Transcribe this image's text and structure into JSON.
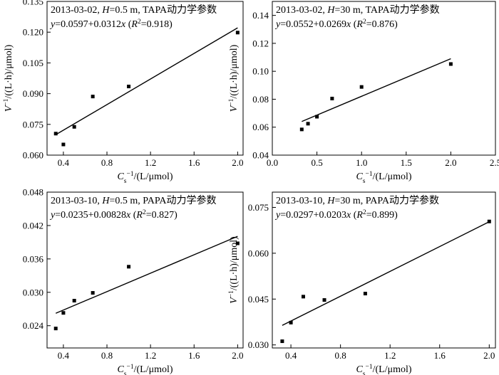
{
  "chart_data": [
    {
      "type": "scatter",
      "title": "2013-03-02, H=0.5 m, TAPA动力学参数",
      "equation": "y=0.0597+0.0312x (R2=0.918)",
      "xlabel": "Cs−1/(L/μmol)",
      "ylabel": "V−1/((L·h)/μmol)",
      "xlim": [
        0.25,
        2.05
      ],
      "ylim": [
        0.06,
        0.135
      ],
      "xticks": [
        0.4,
        0.8,
        1.2,
        1.6,
        2.0
      ],
      "yticks": [
        0.06,
        0.075,
        0.09,
        0.105,
        0.12,
        0.135
      ],
      "x_tick_labels": [
        "0.4",
        "0.8",
        "1.2",
        "1.6",
        "2.0"
      ],
      "y_tick_labels": [
        "0.060",
        "0.075",
        "0.090",
        "0.105",
        "0.120",
        "0.135"
      ],
      "points": [
        [
          0.33,
          0.0705
        ],
        [
          0.4,
          0.0652
        ],
        [
          0.5,
          0.0738
        ],
        [
          0.67,
          0.0886
        ],
        [
          1.0,
          0.0935
        ],
        [
          2.0,
          0.1198
        ]
      ],
      "fit": {
        "intercept": 0.0597,
        "slope": 0.0312,
        "x_range": [
          0.33,
          2.0
        ]
      }
    },
    {
      "type": "scatter",
      "title": "2013-03-02, H=30 m, TAPA动力学参数",
      "equation": "y=0.0552+0.0269x (R2=0.876)",
      "xlabel": "Cs−1/(L/μmol)",
      "ylabel": "V−1/((L·h)/μmol)",
      "xlim": [
        0.0,
        2.5
      ],
      "ylim": [
        0.04,
        0.15
      ],
      "xticks": [
        0.0,
        0.5,
        1.0,
        1.5,
        2.0,
        2.5
      ],
      "yticks": [
        0.04,
        0.06,
        0.08,
        0.1,
        0.12,
        0.14
      ],
      "x_tick_labels": [
        "0.0",
        "0.5",
        "1.0",
        "1.5",
        "2.0",
        "2.5"
      ],
      "y_tick_labels": [
        "0.04",
        "0.06",
        "0.08",
        "0.10",
        "0.12",
        "0.14"
      ],
      "points": [
        [
          0.33,
          0.0584
        ],
        [
          0.4,
          0.0625
        ],
        [
          0.5,
          0.0675
        ],
        [
          0.67,
          0.0805
        ],
        [
          1.0,
          0.0888
        ],
        [
          2.0,
          0.1052
        ]
      ],
      "fit": {
        "intercept": 0.0552,
        "slope": 0.0269,
        "x_range": [
          0.33,
          2.0
        ]
      }
    },
    {
      "type": "scatter",
      "title": "2013-03-10, H=0.5 m, PAPA动力学参数",
      "equation": "y=0.0235+0.00828x (R2=0.827)",
      "xlabel": "Cs−1/(L/μmol)",
      "ylabel": "",
      "xlim": [
        0.25,
        2.05
      ],
      "ylim": [
        0.02,
        0.048
      ],
      "xticks": [
        0.4,
        0.8,
        1.2,
        1.6,
        2.0
      ],
      "yticks": [
        0.024,
        0.03,
        0.036,
        0.042,
        0.048
      ],
      "x_tick_labels": [
        "0.4",
        "0.8",
        "1.2",
        "1.6",
        "2.0"
      ],
      "y_tick_labels": [
        "0.024",
        "0.030",
        "0.036",
        "0.042",
        "0.048"
      ],
      "points": [
        [
          0.33,
          0.0235
        ],
        [
          0.4,
          0.0263
        ],
        [
          0.5,
          0.0285
        ],
        [
          0.67,
          0.0299
        ],
        [
          1.0,
          0.0346
        ],
        [
          2.0,
          0.0388
        ]
      ],
      "fit": {
        "intercept": 0.0235,
        "slope": 0.00828,
        "x_range": [
          0.33,
          2.0
        ]
      }
    },
    {
      "type": "scatter",
      "title": "2013-03-10, H=30 m, PAPA动力学参数",
      "equation": "y=0.0297+0.0203x (R2=0.899)",
      "xlabel": "Cs−1/(L/μmol)",
      "ylabel": "V−1/((L·h)/μmol)",
      "xlim": [
        0.25,
        2.05
      ],
      "ylim": [
        0.029,
        0.08
      ],
      "xticks": [
        0.4,
        0.8,
        1.2,
        1.6,
        2.0
      ],
      "yticks": [
        0.03,
        0.045,
        0.06,
        0.075
      ],
      "x_tick_labels": [
        "0.4",
        "0.8",
        "1.2",
        "1.6",
        "2.0"
      ],
      "y_tick_labels": [
        "0.030",
        "0.045",
        "0.060",
        "0.075"
      ],
      "points": [
        [
          0.33,
          0.0312
        ],
        [
          0.4,
          0.0373
        ],
        [
          0.5,
          0.0458
        ],
        [
          0.67,
          0.0447
        ],
        [
          1.0,
          0.0468
        ],
        [
          2.0,
          0.0704
        ]
      ],
      "fit": {
        "intercept": 0.0297,
        "slope": 0.0203,
        "x_range": [
          0.33,
          2.0
        ]
      }
    }
  ]
}
